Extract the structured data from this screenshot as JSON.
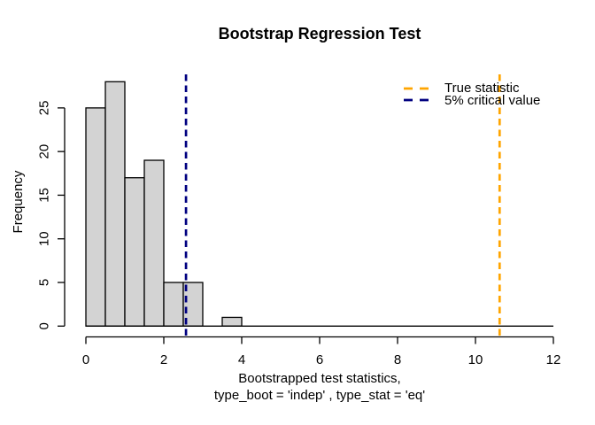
{
  "chart_data": {
    "type": "bar",
    "subtype": "histogram",
    "title": "Bootstrap Regression Test",
    "ylabel": "Frequency",
    "xlabel_lines": [
      "Bootstrapped test statistics,",
      "type_boot = 'indep' , type_stat = 'eq'"
    ],
    "bin_edges": [
      0,
      0.5,
      1,
      1.5,
      2,
      2.5,
      3,
      3.5,
      4
    ],
    "frequencies": [
      25,
      28,
      17,
      19,
      5,
      5,
      0,
      1
    ],
    "xticks": [
      0,
      2,
      4,
      6,
      8,
      10,
      12
    ],
    "yticks": [
      0,
      5,
      10,
      15,
      20,
      25
    ],
    "xlim": [
      0,
      12
    ],
    "ylim": [
      0,
      28
    ],
    "grid": false,
    "background": "#ffffff",
    "bar_fill": "#d3d3d3",
    "bar_border": "#000000",
    "axis_color": "#000000",
    "vlines": [
      {
        "id": "true-statistic",
        "x": 10.62,
        "color": "#ffa500",
        "style": "dashed",
        "label": "True statistic"
      },
      {
        "id": "critical-value-5pct",
        "x": 2.57,
        "color": "#000080",
        "style": "dashed",
        "label": "5% critical value"
      }
    ],
    "legend": {
      "position": "topright",
      "box": false,
      "items": [
        {
          "label": "True statistic",
          "color": "#ffa500",
          "style": "dashed"
        },
        {
          "label": "5% critical value",
          "color": "#000080",
          "style": "dashed"
        }
      ]
    }
  }
}
